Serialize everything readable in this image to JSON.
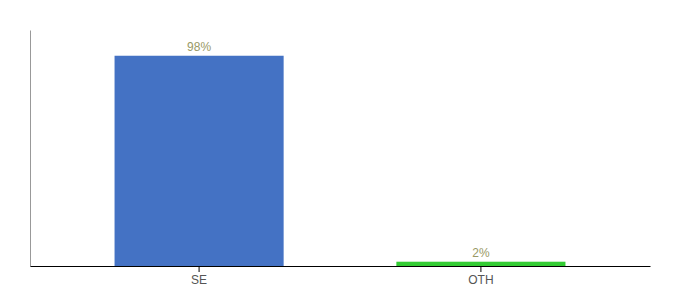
{
  "chart_data": {
    "type": "bar",
    "categories": [
      "SE",
      "OTH"
    ],
    "values": [
      98,
      2
    ],
    "value_labels": [
      "98%",
      "2%"
    ],
    "colors": [
      "#4472c4",
      "#33cc33"
    ],
    "ylim": [
      0,
      110
    ],
    "grid": false,
    "data_labels": true,
    "tick_labels": "x"
  }
}
